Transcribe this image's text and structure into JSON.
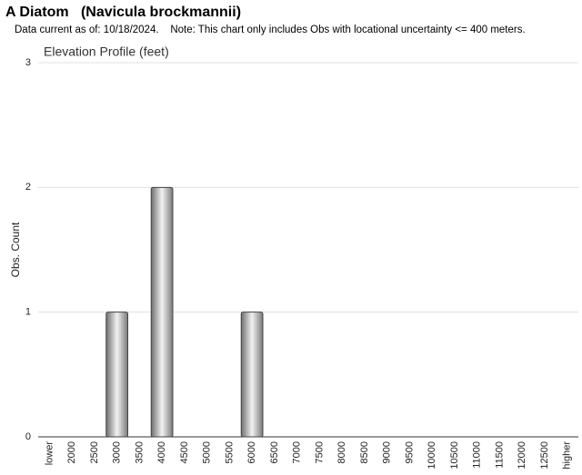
{
  "chart_data": {
    "type": "bar",
    "title": "A Diatom   (Navicula brockmannii)",
    "subtitle": "Data current as of: 10/18/2024.    Note: This chart only includes Obs with locational uncertainty <= 400 meters.",
    "plot_title": "Elevation Profile (feet)",
    "y_label": "Obs. Count",
    "categories": [
      "lower",
      "2000",
      "2500",
      "3000",
      "3500",
      "4000",
      "4500",
      "5000",
      "5500",
      "6000",
      "6500",
      "7000",
      "7500",
      "8000",
      "8500",
      "9000",
      "9500",
      "10000",
      "10500",
      "11000",
      "11500",
      "12000",
      "12500",
      "higher"
    ],
    "values": [
      0,
      0,
      0,
      1,
      0,
      2,
      0,
      0,
      0,
      1,
      0,
      0,
      0,
      0,
      0,
      0,
      0,
      0,
      0,
      0,
      0,
      0,
      0,
      0
    ],
    "ylim": [
      0,
      3
    ],
    "yticks": [
      0,
      1,
      2,
      3
    ],
    "grid": true,
    "color": "#9a9a9a"
  }
}
